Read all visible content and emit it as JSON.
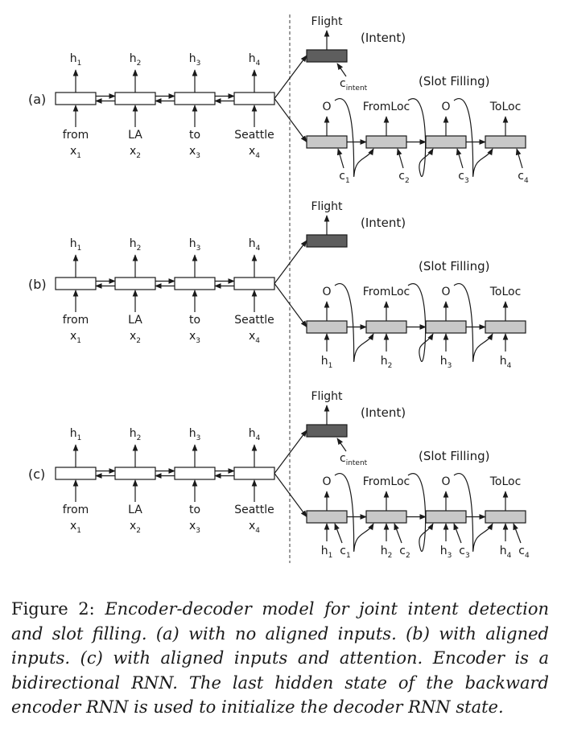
{
  "panels": [
    {
      "label": "(a)",
      "encoder": {
        "outputs": [
          "h",
          "h",
          "h",
          "h"
        ],
        "output_subs": [
          "1",
          "2",
          "3",
          "4"
        ],
        "words": [
          "from",
          "LA",
          "to",
          "Seattle"
        ],
        "inputs": [
          "x",
          "x",
          "x",
          "x"
        ],
        "input_subs": [
          "1",
          "2",
          "3",
          "4"
        ]
      },
      "intent": {
        "output": "Flight",
        "tag": "(Intent)",
        "context": "c",
        "context_sub": "intent"
      },
      "slot": {
        "tag": "(Slot Filling)",
        "labels": [
          "O",
          "FromLoc",
          "O",
          "ToLoc"
        ],
        "feedback": true,
        "inputs": [
          [
            {
              "t": "c",
              "s": "1"
            }
          ],
          [
            {
              "t": "c",
              "s": "2"
            }
          ],
          [
            {
              "t": "c",
              "s": "3"
            }
          ],
          [
            {
              "t": "c",
              "s": "4"
            }
          ]
        ]
      }
    },
    {
      "label": "(b)",
      "encoder": {
        "outputs": [
          "h",
          "h",
          "h",
          "h"
        ],
        "output_subs": [
          "1",
          "2",
          "3",
          "4"
        ],
        "words": [
          "from",
          "LA",
          "to",
          "Seattle"
        ],
        "inputs": [
          "x",
          "x",
          "x",
          "x"
        ],
        "input_subs": [
          "1",
          "2",
          "3",
          "4"
        ]
      },
      "intent": {
        "output": "Flight",
        "tag": "(Intent)"
      },
      "slot": {
        "tag": "(Slot Filling)",
        "labels": [
          "O",
          "FromLoc",
          "O",
          "ToLoc"
        ],
        "feedback": true,
        "inputs": [
          [
            {
              "t": "h",
              "s": "1"
            }
          ],
          [
            {
              "t": "h",
              "s": "2"
            }
          ],
          [
            {
              "t": "h",
              "s": "3"
            }
          ],
          [
            {
              "t": "h",
              "s": "4"
            }
          ]
        ]
      }
    },
    {
      "label": "(c)",
      "encoder": {
        "outputs": [
          "h",
          "h",
          "h",
          "h"
        ],
        "output_subs": [
          "1",
          "2",
          "3",
          "4"
        ],
        "words": [
          "from",
          "LA",
          "to",
          "Seattle"
        ],
        "inputs": [
          "x",
          "x",
          "x",
          "x"
        ],
        "input_subs": [
          "1",
          "2",
          "3",
          "4"
        ]
      },
      "intent": {
        "output": "Flight",
        "tag": "(Intent)",
        "context": "c",
        "context_sub": "intent"
      },
      "slot": {
        "tag": "(Slot Filling)",
        "labels": [
          "O",
          "FromLoc",
          "O",
          "ToLoc"
        ],
        "feedback": true,
        "inputs": [
          [
            {
              "t": "h",
              "s": "1"
            },
            {
              "t": "c",
              "s": "1"
            }
          ],
          [
            {
              "t": "h",
              "s": "2"
            },
            {
              "t": "c",
              "s": "2"
            }
          ],
          [
            {
              "t": "h",
              "s": "3"
            },
            {
              "t": "c",
              "s": "3"
            }
          ],
          [
            {
              "t": "h",
              "s": "4"
            },
            {
              "t": "c",
              "s": "4"
            }
          ]
        ]
      }
    }
  ],
  "caption": {
    "prefix": "Figure 2: ",
    "text": "Encoder-decoder model for joint intent detection and slot filling. (a) with no aligned inputs. (b) with aligned inputs. (c) with aligned inputs and attention. Encoder is a bidirectional RNN. The last hidden state of the backward encoder RNN is used to initialize the decoder RNN state."
  }
}
